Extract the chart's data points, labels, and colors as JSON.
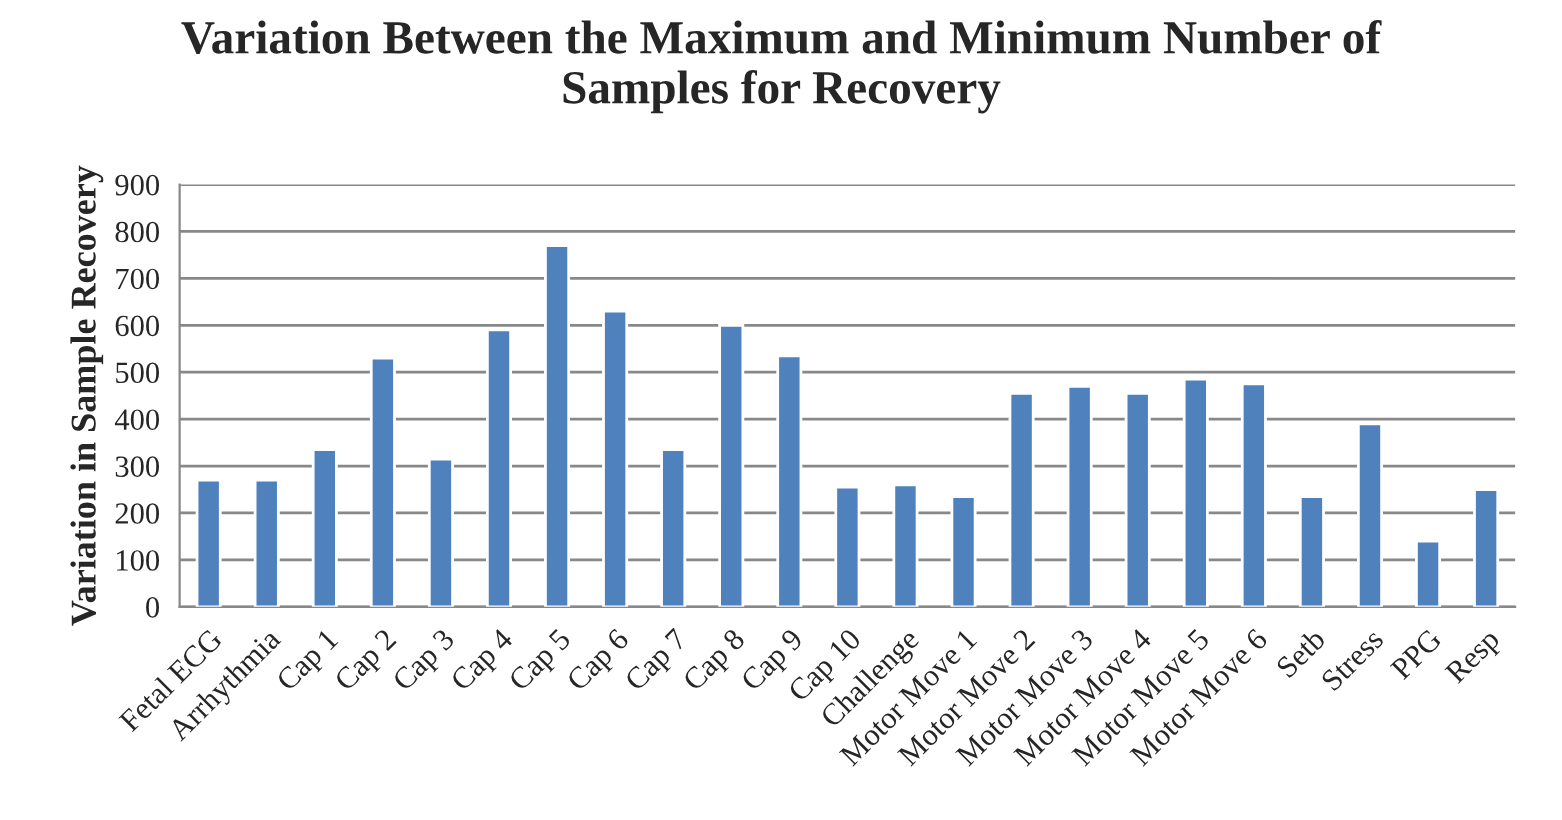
{
  "chart_data": {
    "type": "bar",
    "title": "Variation Between the Maximum and Minimum Number of\nSamples for Recovery",
    "ylabel": "Variation in Sample Recovery",
    "categories": [
      "Fetal ECG",
      "Arrhythmia",
      "Cap 1",
      "Cap 2",
      "Cap 3",
      "Cap 4",
      "Cap 5",
      "Cap 6",
      "Cap 7",
      "Cap 8",
      "Cap 9",
      "Cap 10",
      "Challenge",
      "Motor Move 1",
      "Motor Move 2",
      "Motor Move 3",
      "Motor Move 4",
      "Motor Move 5",
      "Motor Move 6",
      "Setb",
      "Stress",
      "PPG",
      "Resp"
    ],
    "values": [
      270,
      270,
      335,
      530,
      315,
      590,
      770,
      630,
      335,
      600,
      535,
      255,
      260,
      235,
      455,
      470,
      455,
      485,
      475,
      235,
      390,
      140,
      250
    ],
    "color": "#4f81bd",
    "ylim": [
      0,
      900
    ],
    "yticks": [
      0,
      100,
      200,
      300,
      400,
      500,
      600,
      700,
      800,
      900
    ],
    "grid": "y",
    "legend": false
  }
}
